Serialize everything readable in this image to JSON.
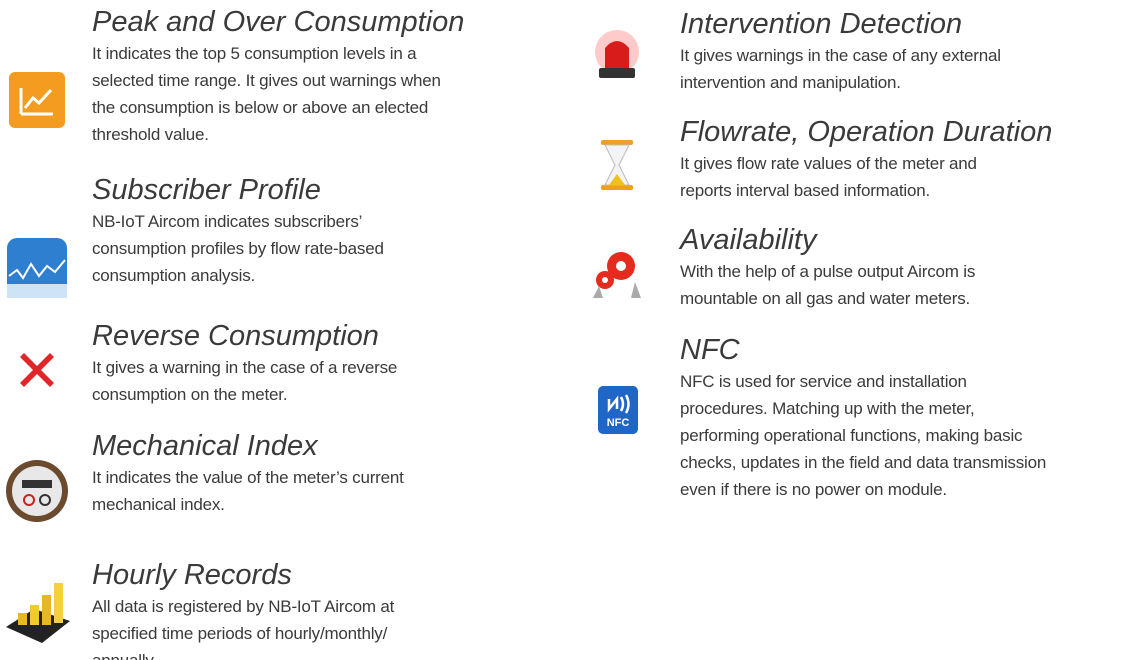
{
  "columns": [
    {
      "items": [
        {
          "title": "Peak and Over Consumption",
          "lines": [
            "It indicates the top 5 consumption levels in a",
            "selected time range. It gives out warnings when",
            "the consumption is below or above an elected",
            "threshold value."
          ]
        },
        {
          "title": "Subscriber Profile",
          "lines": [
            "NB-IoT Aircom indicates subscribers’",
            "consumption profiles by flow rate-based",
            "consumption analysis."
          ]
        },
        {
          "title": "Reverse Consumption",
          "lines": [
            "It gives a warning in the case of a reverse",
            "consumption on the meter."
          ]
        },
        {
          "title": "Mechanical Index",
          "lines": [
            "It indicates the value of the meter’s current",
            "mechanical index."
          ]
        },
        {
          "title": "Hourly Records",
          "lines": [
            "All data is registered by NB-IoT Aircom at",
            "specified time periods of hourly/monthly/",
            "annually."
          ]
        }
      ]
    },
    {
      "items": [
        {
          "title": "Intervention Detection",
          "lines": [
            "It gives warnings in the case of any external",
            "intervention and manipulation."
          ]
        },
        {
          "title": "Flowrate, Operation Duration",
          "lines": [
            "It gives flow rate values of the meter and",
            "reports interval based information."
          ]
        },
        {
          "title": "Availability",
          "lines": [
            "With the help of a pulse output Aircom is",
            "mountable on all gas and water meters."
          ]
        },
        {
          "title": "NFC",
          "lines": [
            "NFC is used for service and installation",
            "procedures. Matching up with the meter,",
            "performing operational functions, making basic",
            "checks, updates in the field and data transmission",
            "even if there is no power on module."
          ]
        }
      ]
    }
  ]
}
